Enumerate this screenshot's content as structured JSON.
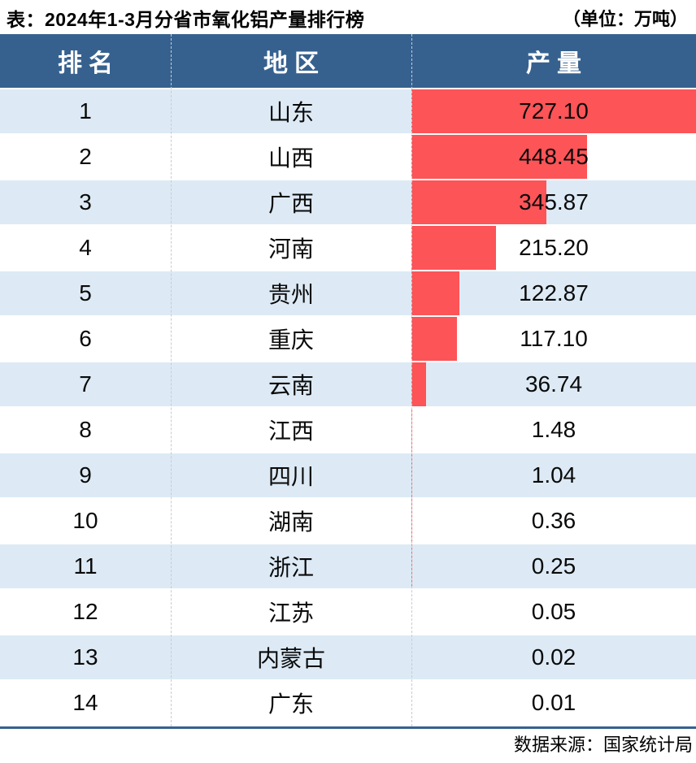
{
  "title": "表：2024年1-3月分省市氧化铝产量排行榜",
  "unit_label": "（单位：万吨）",
  "table": {
    "columns": {
      "rank": "排名",
      "region": "地区",
      "value": "产量"
    },
    "rows": [
      {
        "rank": "1",
        "region": "山东",
        "value": "727.10"
      },
      {
        "rank": "2",
        "region": "山西",
        "value": "448.45"
      },
      {
        "rank": "3",
        "region": "广西",
        "value": "345.87"
      },
      {
        "rank": "4",
        "region": "河南",
        "value": "215.20"
      },
      {
        "rank": "5",
        "region": "贵州",
        "value": "122.87"
      },
      {
        "rank": "6",
        "region": "重庆",
        "value": "117.10"
      },
      {
        "rank": "7",
        "region": "云南",
        "value": "36.74"
      },
      {
        "rank": "8",
        "region": "江西",
        "value": "1.48"
      },
      {
        "rank": "9",
        "region": "四川",
        "value": "1.04"
      },
      {
        "rank": "10",
        "region": "湖南",
        "value": "0.36"
      },
      {
        "rank": "11",
        "region": "浙江",
        "value": "0.25"
      },
      {
        "rank": "12",
        "region": "江苏",
        "value": "0.05"
      },
      {
        "rank": "13",
        "region": "内蒙古",
        "value": "0.02"
      },
      {
        "rank": "14",
        "region": "广东",
        "value": "0.01"
      }
    ]
  },
  "footer": {
    "source": "数据来源：国家统计局"
  },
  "colors": {
    "header_bg": "#36618F",
    "bar_red": "#FC5457",
    "row_alt_blue": "#DDEAF5",
    "footer_rule_blue": "#36618F"
  },
  "chart_data": {
    "type": "bar",
    "orientation": "horizontal",
    "title": "2024年1-3月分省市氧化铝产量排行榜",
    "unit": "万吨",
    "categories": [
      "山东",
      "山西",
      "广西",
      "河南",
      "贵州",
      "重庆",
      "云南",
      "江西",
      "四川",
      "湖南",
      "浙江",
      "江苏",
      "内蒙古",
      "广东"
    ],
    "values": [
      727.1,
      448.45,
      345.87,
      215.2,
      122.87,
      117.1,
      36.74,
      1.48,
      1.04,
      0.36,
      0.25,
      0.05,
      0.02,
      0.01
    ],
    "xlim": [
      0,
      727.1
    ],
    "source": "国家统计局"
  }
}
